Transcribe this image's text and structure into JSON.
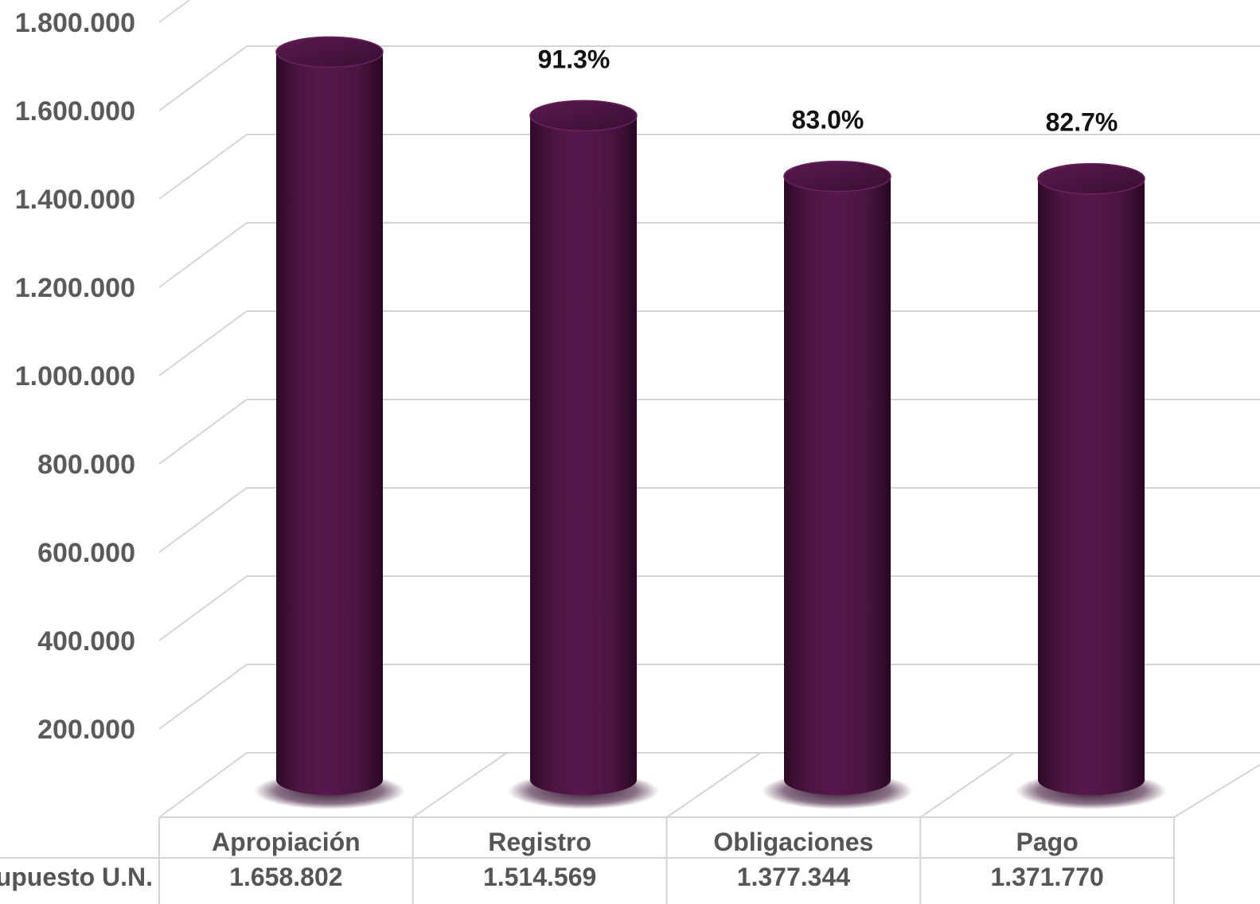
{
  "chart_data": {
    "type": "bar",
    "categories": [
      "Apropiación",
      "Registro",
      "Obligaciones",
      "Pago"
    ],
    "values": [
      1658802,
      1514569,
      1377344,
      1371770
    ],
    "value_labels": [
      "1.658.802",
      "1.514.569",
      "1.377.344",
      "1.371.770"
    ],
    "percent_labels": [
      "",
      "91.3%",
      "83.0%",
      "82.7%"
    ],
    "row_label": "upuesto U.N.",
    "yticks": [
      200000,
      400000,
      600000,
      800000,
      1000000,
      1200000,
      1400000,
      1600000,
      1800000
    ],
    "ytick_labels": [
      "200.000",
      "400.000",
      "600.000",
      "800.000",
      "1.000.000",
      "1.200.000",
      "1.400.000",
      "1.600.000",
      "1.800.000"
    ],
    "ylim": [
      0,
      1800000
    ],
    "grid": true,
    "bar_color": "#521747"
  }
}
